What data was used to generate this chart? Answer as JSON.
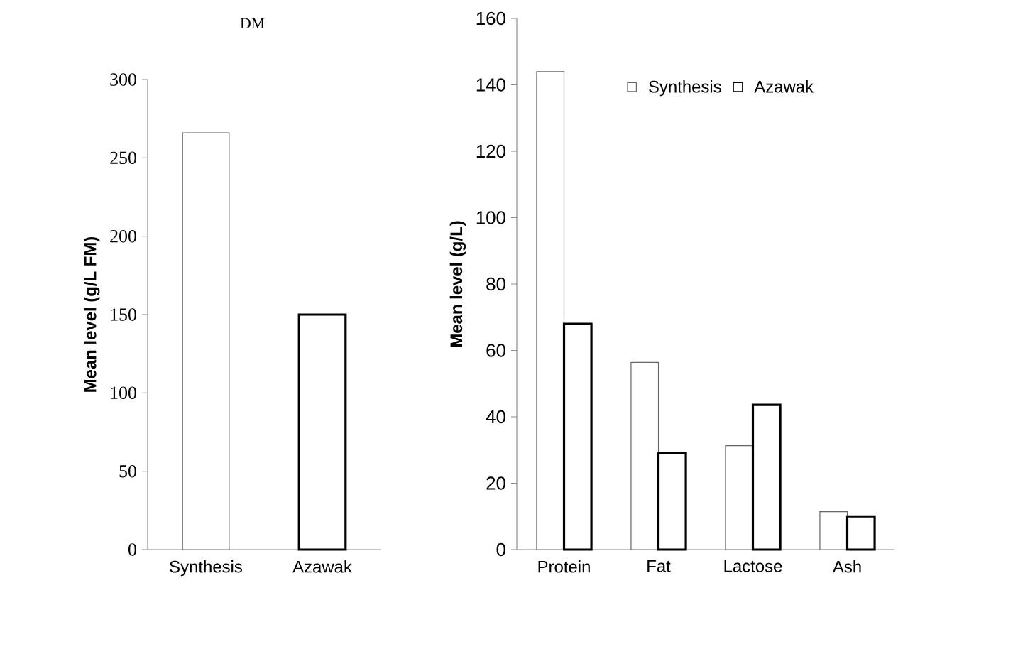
{
  "chart_data": [
    {
      "type": "bar",
      "title": "DM",
      "ylabel": "Mean level (g/L FM)",
      "categories": [
        "Synthesis",
        "Azawak"
      ],
      "values": [
        266,
        150
      ],
      "colors": [
        "#666666",
        "#000000"
      ],
      "ylim": [
        0,
        300
      ],
      "yticks": [
        0,
        50,
        100,
        150,
        200,
        250,
        300
      ]
    },
    {
      "type": "bar",
      "ylabel": "Mean level (g/L)",
      "categories": [
        "Protein",
        "Fat",
        "Lactose",
        "Ash"
      ],
      "series": [
        {
          "name": "Synthesis",
          "color": "#666666",
          "values": [
            144,
            56.4,
            31.3,
            11.4
          ]
        },
        {
          "name": "Azawak",
          "color": "#000000",
          "values": [
            68,
            29,
            43.6,
            10
          ]
        }
      ],
      "ylim": [
        0,
        160
      ],
      "yticks": [
        0,
        20,
        40,
        60,
        80,
        100,
        120,
        140,
        160
      ],
      "legend": "top right"
    }
  ]
}
